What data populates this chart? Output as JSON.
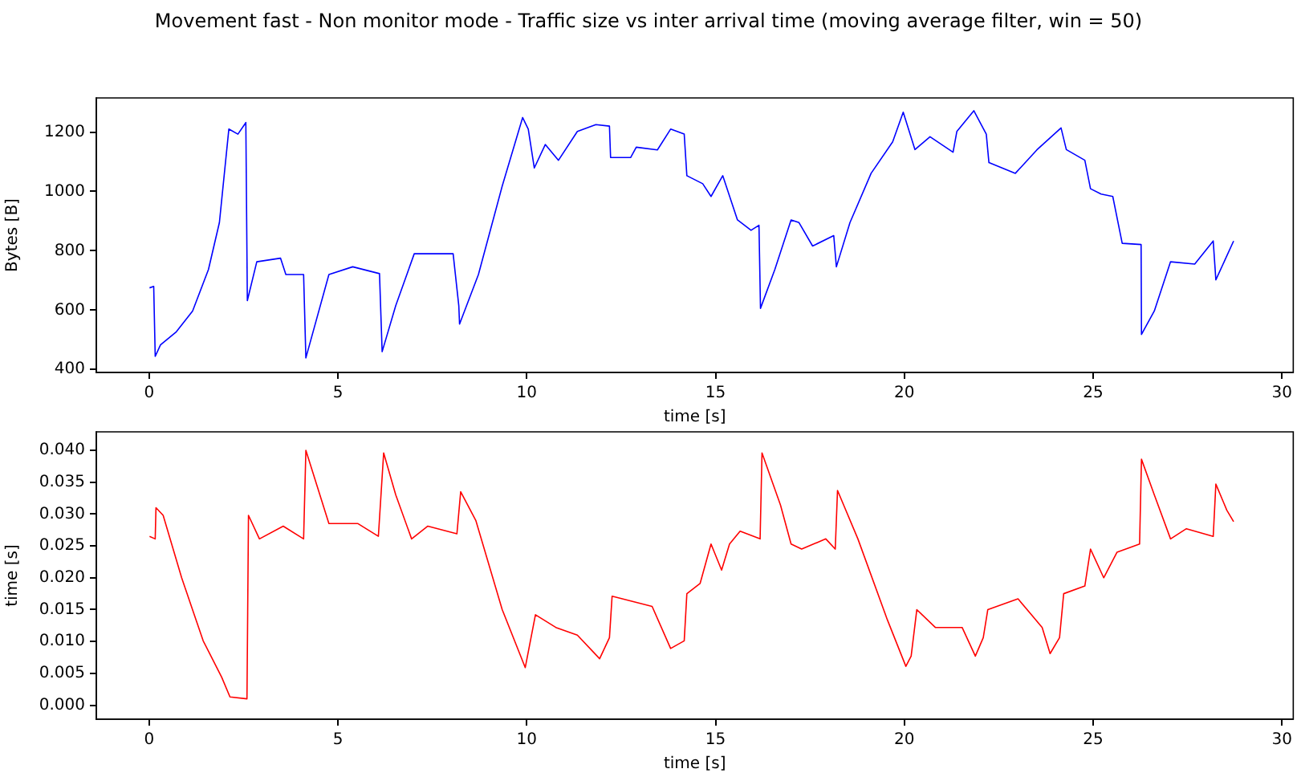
{
  "chart_data": [
    {
      "type": "line",
      "title": "Movement fast - Non monitor mode - Traffic size vs inter arrival time (moving average filter, win = 50)",
      "xlabel": "time [s]",
      "ylabel": "Bytes [B]",
      "xlim": [
        -1.4,
        30.3
      ],
      "xticks": [
        0,
        5,
        10,
        15,
        20,
        25,
        30
      ],
      "ylim": [
        390,
        1315
      ],
      "yticks": [
        400,
        600,
        800,
        1000,
        1200
      ],
      "grid": false,
      "legend": false,
      "marker": "none",
      "line_style": "solid",
      "series": [
        {
          "color": "#0000ff",
          "x": [
            0.01,
            0.12,
            0.16,
            0.3,
            0.72,
            1.15,
            1.57,
            1.86,
            2.11,
            2.35,
            2.56,
            2.6,
            2.85,
            3.48,
            3.62,
            4.09,
            4.15,
            4.76,
            5.39,
            6.1,
            6.17,
            6.53,
            7.02,
            8.05,
            8.2,
            8.22,
            8.72,
            9.35,
            9.89,
            10.04,
            10.2,
            10.49,
            10.84,
            11.34,
            11.83,
            12.19,
            12.22,
            12.75,
            12.9,
            13.46,
            13.81,
            14.17,
            14.24,
            14.66,
            14.88,
            15.19,
            15.58,
            15.94,
            16.15,
            16.19,
            16.57,
            17.0,
            17.21,
            17.57,
            18.13,
            18.2,
            18.56,
            19.12,
            19.69,
            19.97,
            20.28,
            20.68,
            21.29,
            21.39,
            21.84,
            22.17,
            22.24,
            22.94,
            23.51,
            24.15,
            24.29,
            24.78,
            24.93,
            25.21,
            25.52,
            25.77,
            26.27,
            26.28,
            26.62,
            27.05,
            27.69,
            28.18,
            28.25,
            28.72
          ],
          "values": [
            675,
            680,
            444,
            483,
            527,
            597,
            737,
            895,
            1210,
            1193,
            1232,
            632,
            763,
            775,
            720,
            720,
            439,
            720,
            746,
            723,
            460,
            615,
            790,
            790,
            615,
            553,
            720,
            1018,
            1249,
            1210,
            1079,
            1158,
            1105,
            1202,
            1225,
            1220,
            1114,
            1114,
            1149,
            1140,
            1210,
            1193,
            1053,
            1026,
            983,
            1053,
            904,
            869,
            886,
            606,
            737,
            904,
            895,
            816,
            851,
            746,
            895,
            1061,
            1167,
            1267,
            1141,
            1184,
            1132,
            1202,
            1272,
            1193,
            1097,
            1061,
            1140,
            1214,
            1141,
            1105,
            1009,
            991,
            983,
            825,
            821,
            518,
            597,
            763,
            755,
            833,
            702,
            833
          ]
        }
      ]
    },
    {
      "type": "line",
      "xlabel": "time [s]",
      "ylabel": "time [s]",
      "xlim": [
        -1.4,
        30.3
      ],
      "xticks": [
        0,
        5,
        10,
        15,
        20,
        25,
        30
      ],
      "ylim": [
        -0.0022,
        0.0429
      ],
      "yticks": [
        {
          "value": 0,
          "label": "0.000"
        },
        {
          "value": 0.005,
          "label": "0.005"
        },
        {
          "value": 0.01,
          "label": "0.010"
        },
        {
          "value": 0.015,
          "label": "0.015"
        },
        {
          "value": 0.02,
          "label": "0.020"
        },
        {
          "value": 0.025,
          "label": "0.025"
        },
        {
          "value": 0.03,
          "label": "0.030"
        },
        {
          "value": 0.035,
          "label": "0.035"
        },
        {
          "value": 0.04,
          "label": "0.040"
        }
      ],
      "grid": false,
      "legend": false,
      "marker": "none",
      "line_style": "solid",
      "series": [
        {
          "color": "#ff0000",
          "x": [
            0.01,
            0.16,
            0.18,
            0.37,
            0.86,
            1.43,
            1.92,
            2.14,
            2.59,
            2.63,
            2.92,
            3.55,
            4.09,
            4.15,
            4.76,
            5.53,
            6.07,
            6.21,
            6.53,
            6.95,
            7.38,
            8.15,
            8.25,
            8.65,
            9.35,
            9.96,
            10.23,
            10.77,
            11.34,
            11.93,
            12.19,
            12.26,
            13.32,
            13.81,
            14.17,
            14.24,
            14.59,
            14.88,
            15.16,
            15.37,
            15.65,
            16.18,
            16.23,
            16.72,
            17.0,
            17.28,
            17.92,
            18.17,
            18.23,
            18.77,
            19.55,
            20.04,
            20.18,
            20.33,
            20.82,
            21.53,
            21.88,
            22.09,
            22.21,
            23.01,
            23.65,
            23.86,
            24.11,
            24.22,
            24.78,
            24.93,
            25.28,
            25.63,
            26.23,
            26.28,
            26.62,
            27.05,
            27.47,
            28.18,
            28.25,
            28.54,
            28.72
          ],
          "values": [
            0.0265,
            0.0261,
            0.031,
            0.0298,
            0.02,
            0.0101,
            0.0044,
            0.0013,
            0.001,
            0.0298,
            0.0261,
            0.0281,
            0.0261,
            0.04,
            0.0285,
            0.0285,
            0.0265,
            0.0396,
            0.033,
            0.0261,
            0.0281,
            0.0269,
            0.0335,
            0.029,
            0.015,
            0.0059,
            0.0142,
            0.0122,
            0.011,
            0.0073,
            0.0106,
            0.0171,
            0.0155,
            0.0089,
            0.0101,
            0.0175,
            0.0191,
            0.0253,
            0.0212,
            0.0253,
            0.0273,
            0.0261,
            0.0396,
            0.0314,
            0.0253,
            0.0245,
            0.0261,
            0.0245,
            0.0337,
            0.0261,
            0.0134,
            0.0061,
            0.0077,
            0.015,
            0.0122,
            0.0122,
            0.0077,
            0.0106,
            0.015,
            0.0167,
            0.0122,
            0.0081,
            0.0106,
            0.0175,
            0.0187,
            0.0245,
            0.02,
            0.024,
            0.0253,
            0.0386,
            0.033,
            0.0261,
            0.0277,
            0.0265,
            0.0347,
            0.0306,
            0.0288
          ]
        }
      ]
    }
  ]
}
